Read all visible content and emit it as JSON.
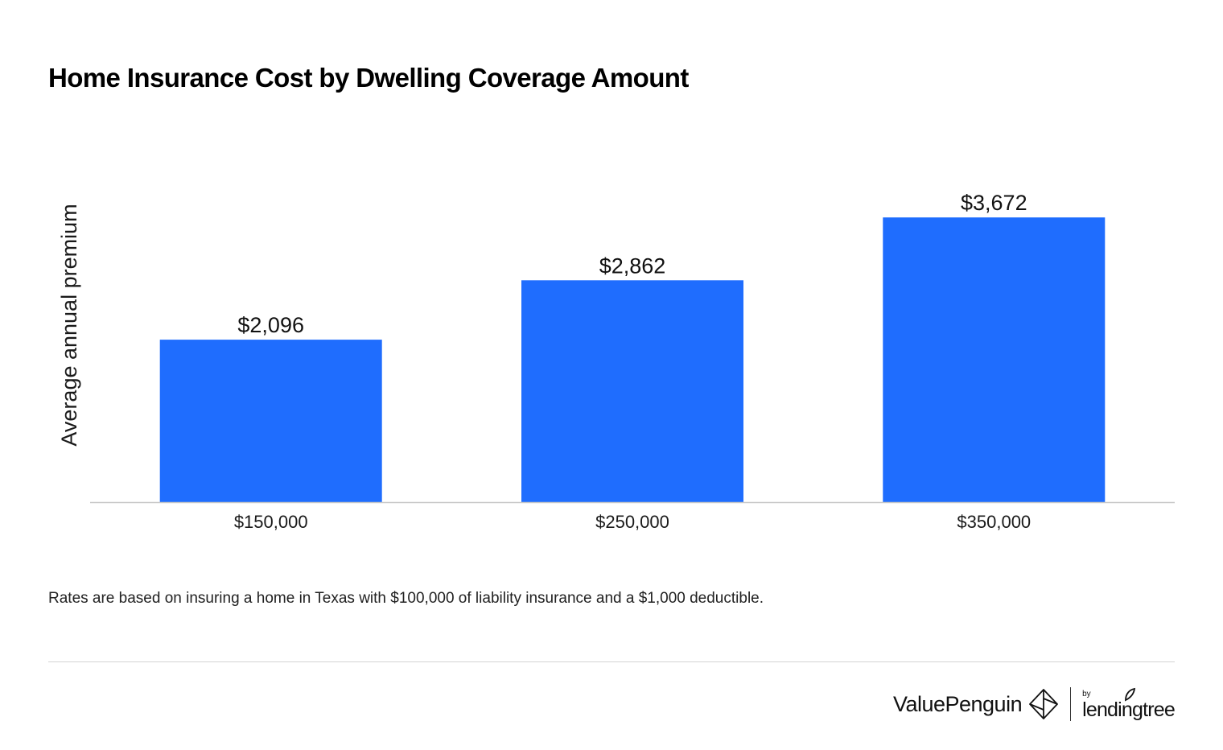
{
  "chart_data": {
    "type": "bar",
    "title": "Home Insurance Cost by Dwelling Coverage Amount",
    "ylabel": "Average annual premium",
    "xlabel": "",
    "categories": [
      "$150,000",
      "$250,000",
      "$350,000"
    ],
    "values": [
      2096,
      2862,
      3672
    ],
    "value_labels": [
      "$2,096",
      "$2,862",
      "$3,672"
    ],
    "ylim": [
      0,
      4100
    ],
    "grid": false,
    "legend": "none",
    "bar_color": "#1f6dfe",
    "axis_color": "#c8c8c8"
  },
  "footnote": "Rates are based on insuring a home in Texas with $100,000 of liability insurance and a $1,000 deductible.",
  "branding": {
    "primary": "ValuePenguin",
    "by": "by",
    "secondary": "lendingtree",
    "primary_icon": "valuepenguin-logo-icon",
    "secondary_icon": "leaf-icon"
  }
}
